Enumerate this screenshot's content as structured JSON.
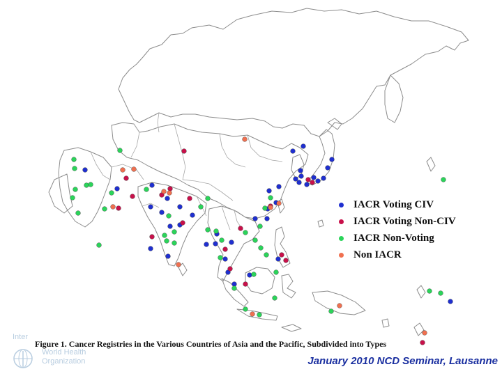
{
  "legend": {
    "items": [
      {
        "label": "IACR Voting CIV",
        "color": "#1f2fd0"
      },
      {
        "label": "IACR Voting Non-CIV",
        "color": "#c8104a"
      },
      {
        "label": "IACR Non-Voting",
        "color": "#2bd45a"
      },
      {
        "label": "Non IACR",
        "color": "#f07050"
      }
    ]
  },
  "caption": "Figure 1. Cancer Registries in the Various Countries of Asia and the Pacific, Subdivided into Types",
  "footer": "January 2010 NCD Seminar, Lausanne",
  "logo": {
    "inter_text": "Inter",
    "line1": "World Health",
    "line2": "Organization",
    "icon": "who-emblem-icon"
  },
  "registries": {
    "voting_civ": [
      [
        122,
        244
      ],
      [
        168,
        271
      ],
      [
        216,
        297
      ],
      [
        218,
        266
      ],
      [
        240,
        285
      ],
      [
        232,
        305
      ],
      [
        258,
        297
      ],
      [
        276,
        309
      ],
      [
        258,
        323
      ],
      [
        244,
        325
      ],
      [
        296,
        351
      ],
      [
        311,
        336
      ],
      [
        309,
        350
      ],
      [
        323,
        372
      ],
      [
        327,
        391
      ],
      [
        336,
        408
      ],
      [
        358,
        395
      ],
      [
        384,
        300
      ],
      [
        396,
        291
      ],
      [
        386,
        274
      ],
      [
        420,
        217
      ],
      [
        435,
        210
      ],
      [
        431,
        245
      ],
      [
        432,
        253
      ],
      [
        424,
        257
      ],
      [
        429,
        262
      ],
      [
        440,
        265
      ],
      [
        450,
        255
      ],
      [
        456,
        260
      ],
      [
        464,
        256
      ],
      [
        470,
        241
      ],
      [
        476,
        229
      ],
      [
        366,
        314
      ],
      [
        383,
        314
      ],
      [
        399,
        372
      ],
      [
        332,
        348
      ],
      [
        216,
        357
      ],
      [
        241,
        368
      ],
      [
        646,
        433
      ],
      [
        400,
        268
      ]
    ],
    "voting_noncivic": [
      [
        264,
        217
      ],
      [
        181,
        256
      ],
      [
        244,
        271
      ],
      [
        232,
        280
      ],
      [
        272,
        285
      ],
      [
        262,
        320
      ],
      [
        345,
        328
      ],
      [
        323,
        358
      ],
      [
        330,
        386
      ],
      [
        352,
        408
      ],
      [
        404,
        366
      ],
      [
        410,
        374
      ],
      [
        448,
        262
      ],
      [
        442,
        258
      ],
      [
        388,
        296
      ],
      [
        190,
        282
      ],
      [
        170,
        299
      ],
      [
        218,
        340
      ],
      [
        606,
        492
      ]
    ],
    "non_voting": [
      [
        172,
        216
      ],
      [
        107,
        242
      ],
      [
        106,
        229
      ],
      [
        124,
        266
      ],
      [
        130,
        265
      ],
      [
        108,
        272
      ],
      [
        104,
        284
      ],
      [
        160,
        277
      ],
      [
        210,
        272
      ],
      [
        150,
        300
      ],
      [
        112,
        306
      ],
      [
        142,
        352
      ],
      [
        288,
        297
      ],
      [
        298,
        285
      ],
      [
        298,
        330
      ],
      [
        242,
        310
      ],
      [
        250,
        333
      ],
      [
        236,
        338
      ],
      [
        239,
        346
      ],
      [
        250,
        349
      ],
      [
        310,
        332
      ],
      [
        316,
        370
      ],
      [
        318,
        345
      ],
      [
        352,
        334
      ],
      [
        366,
        345
      ],
      [
        374,
        356
      ],
      [
        373,
        325
      ],
      [
        380,
        299
      ],
      [
        388,
        284
      ],
      [
        364,
        394
      ],
      [
        352,
        444
      ],
      [
        372,
        452
      ],
      [
        394,
        428
      ],
      [
        396,
        391
      ],
      [
        382,
        366
      ],
      [
        336,
        414
      ],
      [
        616,
        418
      ],
      [
        632,
        421
      ],
      [
        636,
        258
      ],
      [
        475,
        447
      ]
    ],
    "non_iacr": [
      [
        351,
        200
      ],
      [
        176,
        244
      ],
      [
        192,
        243
      ],
      [
        235,
        275
      ],
      [
        243,
        277
      ],
      [
        162,
        297
      ],
      [
        256,
        380
      ],
      [
        388,
        298
      ],
      [
        400,
        292
      ],
      [
        362,
        451
      ],
      [
        487,
        439
      ],
      [
        609,
        478
      ]
    ]
  }
}
